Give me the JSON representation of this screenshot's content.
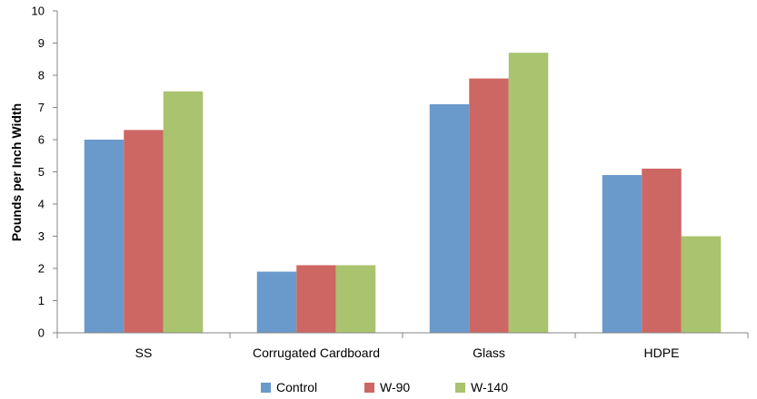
{
  "chart_data": {
    "type": "bar",
    "title": "",
    "xlabel": "",
    "ylabel": "Pounds per Inch Width",
    "ylim": [
      0,
      10
    ],
    "yticks": [
      0,
      1,
      2,
      3,
      4,
      5,
      6,
      7,
      8,
      9,
      10
    ],
    "grid": false,
    "legend_position": "bottom",
    "categories": [
      "SS",
      "Corrugated Cardboard",
      "Glass",
      "HDPE"
    ],
    "series": [
      {
        "name": "Control",
        "color": "#6a99cb",
        "values": [
          6.0,
          1.9,
          7.1,
          4.9
        ]
      },
      {
        "name": "W-90",
        "color": "#cd6763",
        "values": [
          6.3,
          2.1,
          7.9,
          5.1
        ]
      },
      {
        "name": "W-140",
        "color": "#a9c36e",
        "values": [
          7.5,
          2.1,
          8.7,
          3.0
        ]
      }
    ]
  }
}
